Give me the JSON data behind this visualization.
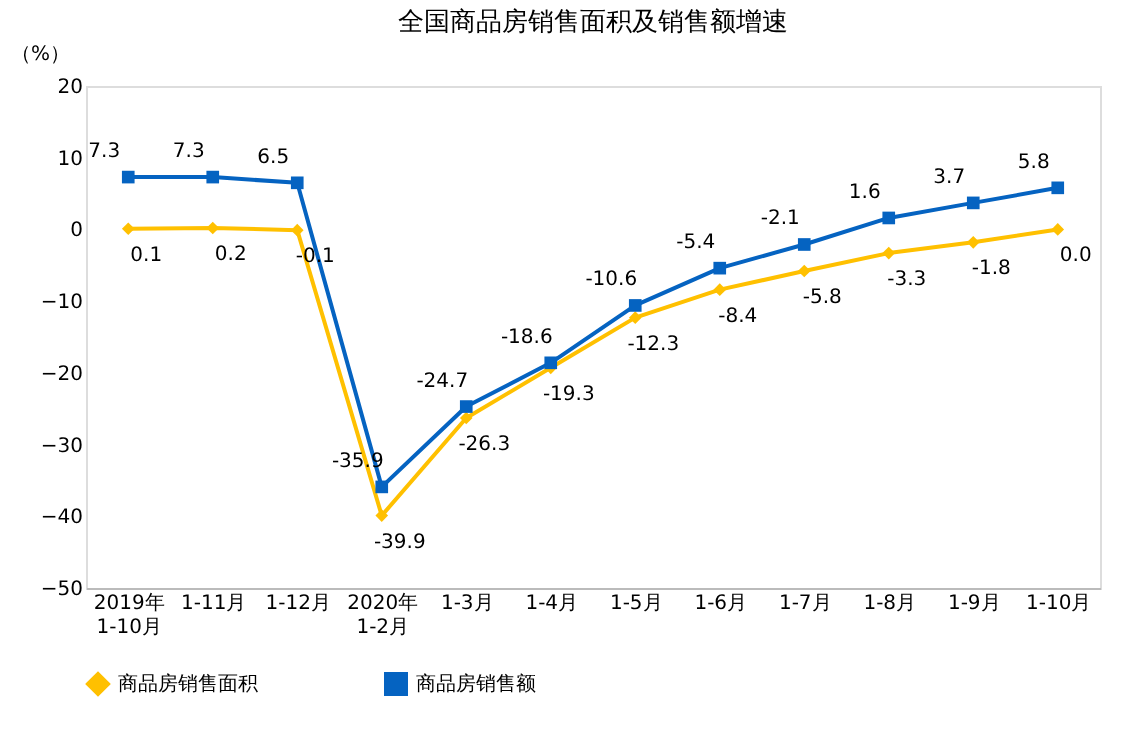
{
  "chart_data": {
    "type": "line",
    "title": "全国商品房销售面积及销售额增速",
    "ylabel": "（%）",
    "categories": [
      "2019年\n1-10月",
      "1-11月",
      "1-12月",
      "2020年\n1-2月",
      "1-3月",
      "1-4月",
      "1-5月",
      "1-6月",
      "1-7月",
      "1-8月",
      "1-9月",
      "1-10月"
    ],
    "series": [
      {
        "name": "商品房销售面积",
        "color": "#ffc000",
        "marker": "diamond",
        "values": [
          0.1,
          0.2,
          -0.1,
          -39.9,
          -26.3,
          -19.3,
          -12.3,
          -8.4,
          -5.8,
          -3.3,
          -1.8,
          0.0
        ],
        "value_labels": [
          "0.1",
          "0.2",
          "-0.1",
          "-39.9",
          "-26.3",
          "-19.3",
          "-12.3",
          "-8.4",
          "-5.8",
          "-3.3",
          "-1.8",
          "0.0"
        ]
      },
      {
        "name": "商品房销售额",
        "color": "#0563c1",
        "marker": "square",
        "values": [
          7.3,
          7.3,
          6.5,
          -35.9,
          -24.7,
          -18.6,
          -10.6,
          -5.4,
          -2.1,
          1.6,
          3.7,
          5.8
        ],
        "value_labels": [
          "7.3",
          "7.3",
          "6.5",
          "-35.9",
          "-24.7",
          "-18.6",
          "-10.6",
          "-5.4",
          "-2.1",
          "1.6",
          "3.7",
          "5.8"
        ]
      }
    ],
    "ylim": [
      -50,
      20
    ],
    "yticks": [
      -50,
      -40,
      -30,
      -20,
      -10,
      0,
      10,
      20
    ],
    "grid": false,
    "legend": "bottom",
    "line_style": "solid"
  }
}
